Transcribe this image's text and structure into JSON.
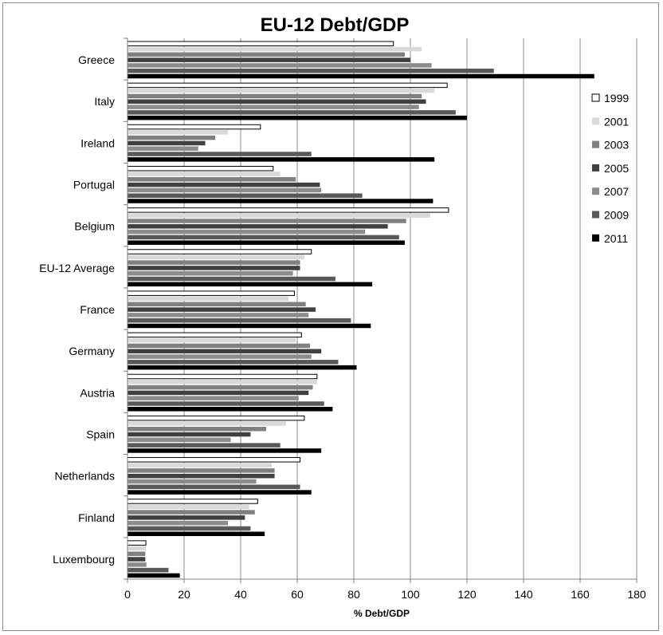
{
  "chart_data": {
    "type": "bar",
    "orientation": "horizontal",
    "title": "EU-12 Debt/GDP",
    "xlabel": "% Debt/GDP",
    "ylabel": "",
    "xlim": [
      0,
      180
    ],
    "xticks": [
      0,
      20,
      40,
      60,
      80,
      100,
      120,
      140,
      160,
      180
    ],
    "grid": "vertical",
    "legend_position": "right",
    "categories": [
      "Greece",
      "Italy",
      "Ireland",
      "Portugal",
      "Belgium",
      "EU-12 Average",
      "France",
      "Germany",
      "Austria",
      "Spain",
      "Netherlands",
      "Finland",
      "Luxembourg"
    ],
    "series": [
      {
        "name": "1999",
        "color": "#ffffff",
        "values": [
          94,
          113,
          47,
          51.5,
          113.5,
          65,
          59,
          61.5,
          67,
          62.5,
          61,
          46,
          6.5
        ]
      },
      {
        "name": "2001",
        "color": "#d9d9d9",
        "values": [
          104,
          108.5,
          35.5,
          54,
          107,
          62.5,
          57,
          59.5,
          67,
          56,
          51,
          43,
          6.5
        ]
      },
      {
        "name": "2003",
        "color": "#808080",
        "values": [
          98,
          104,
          31,
          59.5,
          98.5,
          61,
          63,
          64.5,
          65.5,
          49,
          52,
          45,
          6.3
        ]
      },
      {
        "name": "2005",
        "color": "#404040",
        "values": [
          100,
          105.5,
          27.5,
          68,
          92,
          61,
          66.5,
          68.5,
          64,
          43.5,
          52,
          41.5,
          6.3
        ]
      },
      {
        "name": "2007",
        "color": "#8c8c8c",
        "values": [
          107.5,
          103,
          25,
          68.5,
          84,
          58.5,
          64,
          65,
          60.5,
          36.5,
          45.5,
          35.5,
          6.7
        ]
      },
      {
        "name": "2009",
        "color": "#595959",
        "values": [
          129.5,
          116,
          65,
          83,
          96,
          73.5,
          79,
          74.5,
          69.5,
          54,
          61,
          43.5,
          14.5
        ]
      },
      {
        "name": "2011",
        "color": "#000000",
        "values": [
          165,
          120,
          108.5,
          108,
          98,
          86.5,
          86,
          81,
          72.5,
          68.5,
          65,
          48.5,
          18.5
        ]
      }
    ]
  }
}
